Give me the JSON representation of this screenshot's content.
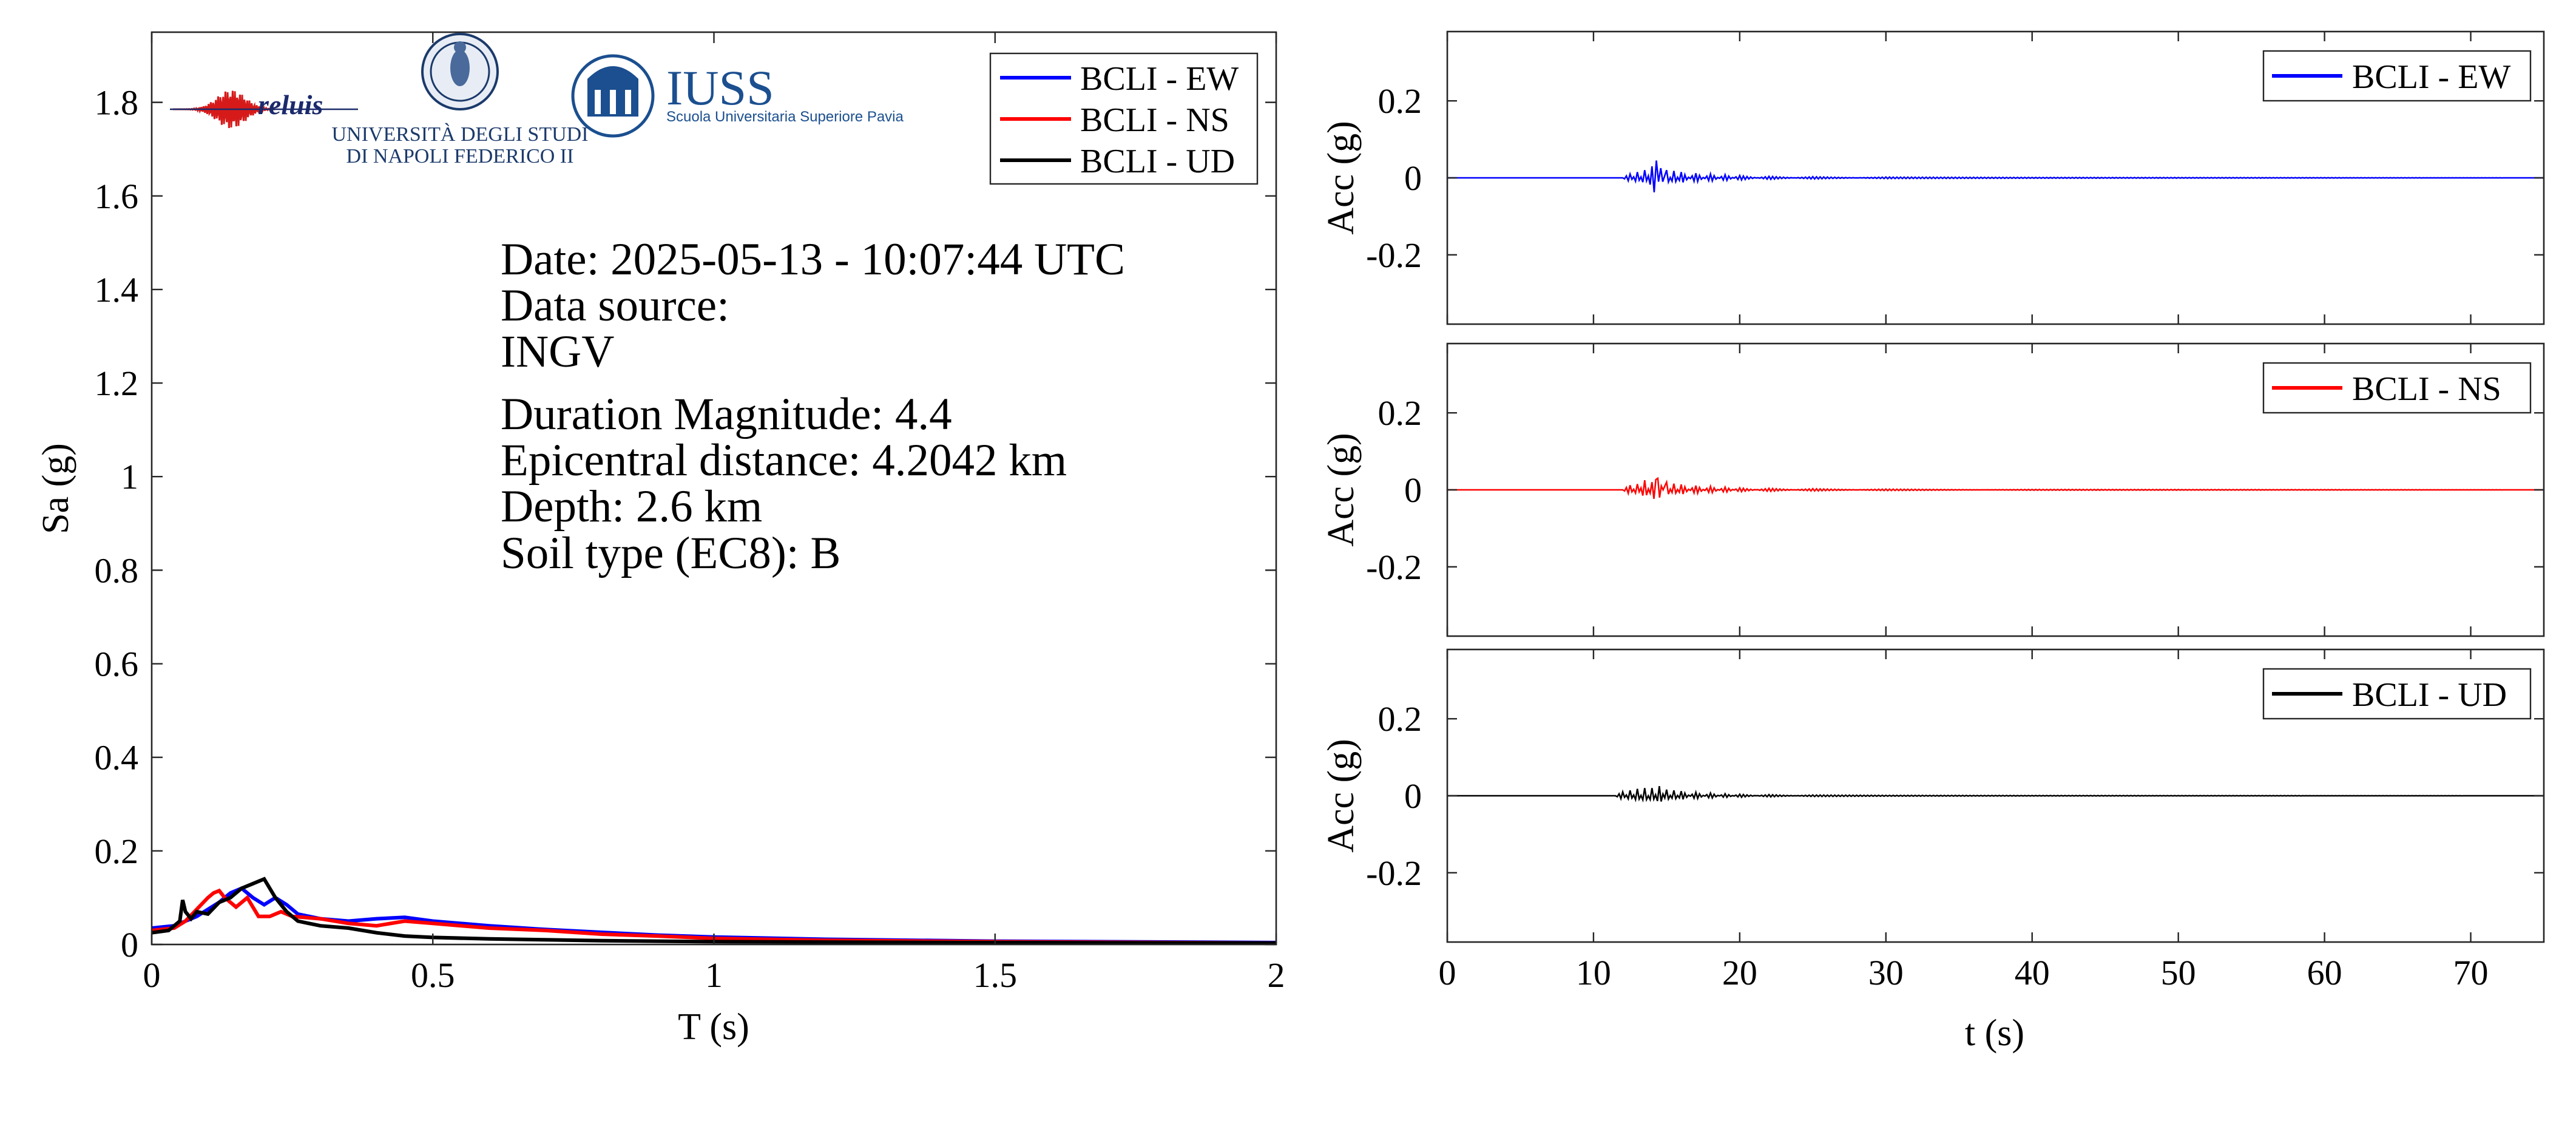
{
  "logos": {
    "reluis": "reluis",
    "unina_line1": "UNIVERSITÀ DEGLI STUDI",
    "unina_line2": "DI NAPOLI FEDERICO II",
    "iuss_name": "IUSS",
    "iuss_sub": "Scuola Universitaria Superiore Pavia"
  },
  "info": {
    "date": "Date: 2025-05-13 - 10:07:44 UTC",
    "source_label": "Data source:",
    "source": "INGV",
    "magnitude": "Duration Magnitude: 4.4",
    "distance": "Epicentral distance: 4.2042 km",
    "depth": "Depth: 2.6 km",
    "soil": "Soil type (EC8): B"
  },
  "colors": {
    "EW": "#0000ff",
    "NS": "#ff0000",
    "UD": "#000000"
  },
  "chart_data": [
    {
      "type": "line",
      "xlabel": "T (s)",
      "ylabel": "Sa (g)",
      "xlim": [
        0,
        2
      ],
      "ylim": [
        0,
        1.95
      ],
      "xticks": [
        0,
        0.5,
        1,
        1.5,
        2
      ],
      "xtick_labels": [
        "0",
        "0.5",
        "1",
        "1.5",
        "2"
      ],
      "yticks": [
        0,
        0.2,
        0.4,
        0.6,
        0.8,
        1,
        1.2,
        1.4,
        1.6,
        1.8
      ],
      "ytick_labels": [
        "0",
        "0.2",
        "0.4",
        "0.6",
        "0.8",
        "1",
        "1.2",
        "1.4",
        "1.6",
        "1.8"
      ],
      "legend": "top-right",
      "series": [
        {
          "name": "BCLI - EW",
          "x": [
            0,
            0.04,
            0.06,
            0.08,
            0.1,
            0.12,
            0.14,
            0.16,
            0.18,
            0.2,
            0.22,
            0.24,
            0.26,
            0.3,
            0.35,
            0.4,
            0.45,
            0.5,
            0.6,
            0.7,
            0.8,
            0.9,
            1.0,
            1.2,
            1.5,
            2.0
          ],
          "y": [
            0.035,
            0.04,
            0.05,
            0.06,
            0.075,
            0.09,
            0.11,
            0.12,
            0.1,
            0.085,
            0.1,
            0.085,
            0.065,
            0.055,
            0.05,
            0.055,
            0.058,
            0.05,
            0.04,
            0.032,
            0.026,
            0.02,
            0.016,
            0.011,
            0.007,
            0.004
          ]
        },
        {
          "name": "BCLI - NS",
          "x": [
            0,
            0.04,
            0.06,
            0.08,
            0.1,
            0.11,
            0.12,
            0.13,
            0.15,
            0.17,
            0.19,
            0.21,
            0.23,
            0.25,
            0.3,
            0.35,
            0.4,
            0.45,
            0.5,
            0.6,
            0.7,
            0.8,
            0.9,
            1.0,
            1.2,
            1.5,
            2.0
          ],
          "y": [
            0.03,
            0.035,
            0.05,
            0.075,
            0.1,
            0.11,
            0.115,
            0.1,
            0.08,
            0.1,
            0.06,
            0.06,
            0.07,
            0.06,
            0.055,
            0.045,
            0.04,
            0.05,
            0.045,
            0.035,
            0.03,
            0.022,
            0.018,
            0.013,
            0.009,
            0.006,
            0.003
          ]
        },
        {
          "name": "BCLI - UD",
          "x": [
            0,
            0.03,
            0.05,
            0.055,
            0.06,
            0.07,
            0.08,
            0.1,
            0.12,
            0.14,
            0.16,
            0.18,
            0.2,
            0.22,
            0.24,
            0.26,
            0.3,
            0.35,
            0.4,
            0.45,
            0.5,
            0.6,
            0.7,
            0.8,
            0.9,
            1.0,
            1.2,
            1.5,
            2.0
          ],
          "y": [
            0.025,
            0.03,
            0.05,
            0.095,
            0.07,
            0.055,
            0.07,
            0.065,
            0.09,
            0.1,
            0.12,
            0.13,
            0.14,
            0.1,
            0.07,
            0.05,
            0.04,
            0.035,
            0.025,
            0.018,
            0.015,
            0.012,
            0.01,
            0.008,
            0.007,
            0.006,
            0.005,
            0.004,
            0.003
          ]
        }
      ]
    },
    {
      "type": "line",
      "xlabel": "",
      "ylabel": "Acc (g)",
      "xlim": [
        0,
        75
      ],
      "ylim": [
        -0.38,
        0.38
      ],
      "xticks": [
        0,
        10,
        20,
        30,
        40,
        50,
        60,
        70
      ],
      "yticks": [
        -0.2,
        0,
        0.2
      ],
      "ytick_labels": [
        "-0.2",
        "0",
        "0.2"
      ],
      "legend": "top-right",
      "series": [
        {
          "name": "BCLI - EW",
          "t": [
            0,
            12,
            12.5,
            13,
            13.5,
            14,
            14.3,
            14.6,
            15,
            15.5,
            16,
            17,
            18,
            19,
            20,
            22,
            25,
            30,
            40,
            75
          ],
          "a": [
            0,
            0,
            0.01,
            -0.015,
            0.02,
            -0.03,
            -0.045,
            0.025,
            -0.02,
            0.018,
            -0.015,
            0.012,
            -0.01,
            0.008,
            -0.006,
            0.004,
            -0.003,
            0.002,
            0.001,
            0
          ]
        },
        {
          "name": "BCLI - NS",
          "t": [
            0,
            12,
            12.5,
            13,
            13.5,
            14,
            14.4,
            15,
            15.5,
            16,
            17,
            18,
            19,
            20,
            22,
            25,
            30,
            40,
            75
          ],
          "a": [
            0,
            0,
            0.012,
            -0.015,
            0.025,
            -0.02,
            -0.03,
            0.02,
            -0.016,
            0.014,
            -0.011,
            0.009,
            -0.007,
            0.005,
            -0.004,
            0.003,
            -0.002,
            0.001,
            0
          ]
        },
        {
          "name": "BCLI - UD",
          "t": [
            0,
            11.5,
            12,
            12.5,
            13,
            13.5,
            14,
            14.5,
            15,
            15.5,
            16,
            17,
            18,
            19,
            20,
            22,
            25,
            30,
            40,
            75
          ],
          "a": [
            0,
            0,
            0.01,
            -0.014,
            0.018,
            -0.02,
            0.02,
            -0.025,
            0.016,
            -0.014,
            0.012,
            -0.009,
            0.007,
            -0.005,
            0.004,
            -0.003,
            0.002,
            0.001,
            0.0005,
            0
          ]
        }
      ],
      "shared_xlabel": "t (s)",
      "shared_xtick_labels": [
        "0",
        "10",
        "20",
        "30",
        "40",
        "50",
        "60",
        "70"
      ]
    }
  ]
}
